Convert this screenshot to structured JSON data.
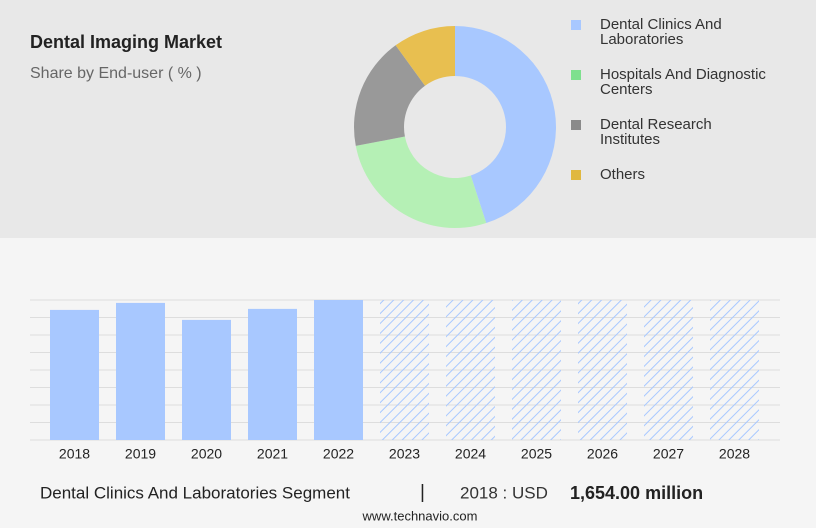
{
  "chart_data": [
    {
      "type": "donut",
      "title": "Dental Imaging Market",
      "subtitle": "Share by End-user ( % )",
      "categories": [
        "Dental Clinics And Laboratories",
        "Hospitals And Diagnostic Centers",
        "Dental Research Institutes",
        "Others"
      ],
      "values": [
        45,
        27,
        18,
        10
      ],
      "colors": [
        "#a8c8ff",
        "#b5f0b5",
        "#999999",
        "#e8bf50"
      ],
      "legend_colors": [
        "#a8c8ff",
        "#7ee08e",
        "#8a8a8a",
        "#e0b840"
      ]
    },
    {
      "type": "bar",
      "categories": [
        "2018",
        "2019",
        "2020",
        "2021",
        "2022",
        "2023",
        "2024",
        "2025",
        "2026",
        "2027",
        "2028"
      ],
      "values": [
        1654,
        1743,
        1527,
        1667,
        1780,
        null,
        null,
        null,
        null,
        null,
        null
      ],
      "color": "#a8c8ff",
      "ylim": [
        0,
        1780
      ],
      "grid": true
    }
  ],
  "footer": {
    "segment": "Dental Clinics And Laboratories Segment",
    "separator": "|",
    "year_label": "2018 : USD",
    "value": "1,654.00 million",
    "source": "www.technavio.com"
  }
}
